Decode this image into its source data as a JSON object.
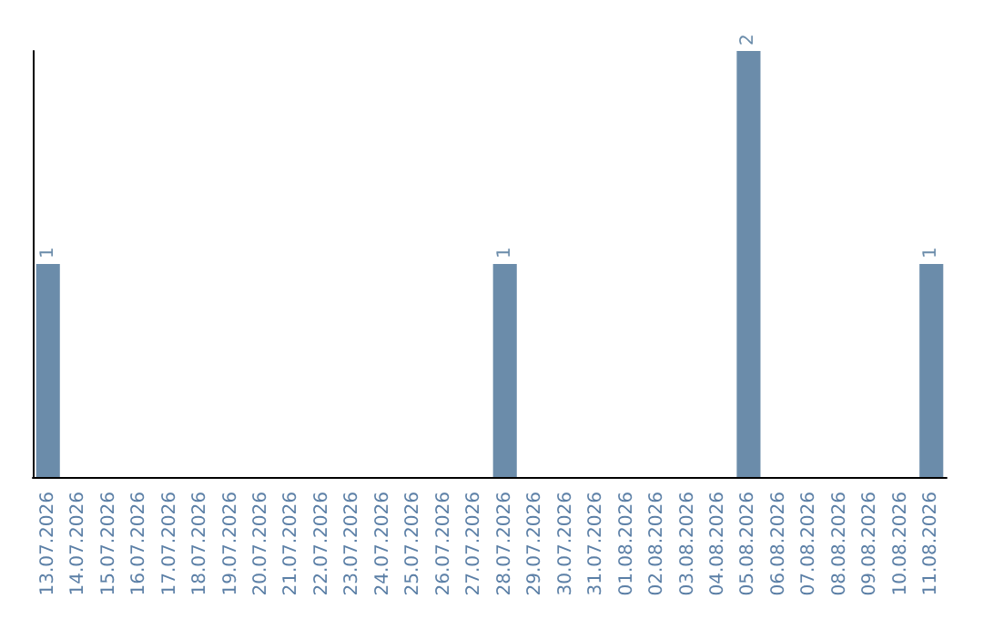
{
  "chart_data": {
    "type": "bar",
    "categories": [
      "13.07.2026",
      "14.07.2026",
      "15.07.2026",
      "16.07.2026",
      "17.07.2026",
      "18.07.2026",
      "19.07.2026",
      "20.07.2026",
      "21.07.2026",
      "22.07.2026",
      "23.07.2026",
      "24.07.2026",
      "25.07.2026",
      "26.07.2026",
      "27.07.2026",
      "28.07.2026",
      "29.07.2026",
      "30.07.2026",
      "31.07.2026",
      "01.08.2026",
      "02.08.2026",
      "03.08.2026",
      "04.08.2026",
      "05.08.2026",
      "06.08.2026",
      "07.08.2026",
      "08.08.2026",
      "09.08.2026",
      "10.08.2026",
      "11.08.2026"
    ],
    "values": [
      1,
      0,
      0,
      0,
      0,
      0,
      0,
      0,
      0,
      0,
      0,
      0,
      0,
      0,
      0,
      1,
      0,
      0,
      0,
      0,
      0,
      0,
      0,
      2,
      0,
      0,
      0,
      0,
      0,
      1
    ],
    "value_labels": [
      "1",
      null,
      null,
      null,
      null,
      null,
      null,
      null,
      null,
      null,
      null,
      null,
      null,
      null,
      null,
      "1",
      null,
      null,
      null,
      null,
      null,
      null,
      null,
      "2",
      null,
      null,
      null,
      null,
      null,
      "1"
    ],
    "color": "#6b8caa",
    "tick_labels": "x"
  }
}
